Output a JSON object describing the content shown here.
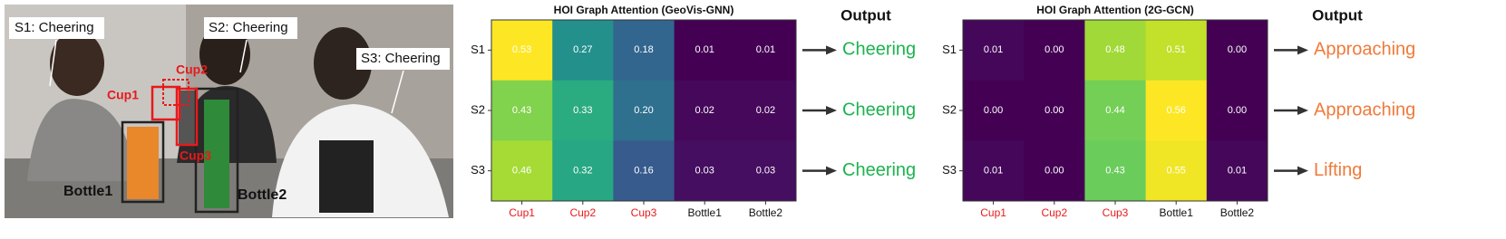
{
  "photo": {
    "subject_labels": [
      "S1: Cheering",
      "S2: Cheering",
      "S3: Cheering"
    ],
    "object_labels": [
      "Cup1",
      "Cup2",
      "Cup3",
      "Bottle1",
      "Bottle2"
    ]
  },
  "chart_data": [
    {
      "type": "heatmap",
      "title": "HOI Graph Attention (GeoVis-GNN)",
      "colormap": "viridis",
      "zlim": [
        0.01,
        0.53
      ],
      "x_categories": [
        "Cup1",
        "Cup2",
        "Cup3",
        "Bottle1",
        "Bottle2"
      ],
      "x_category_colors": [
        "#e8191b",
        "#e8191b",
        "#e8191b",
        "#111111",
        "#111111"
      ],
      "y_categories": [
        "S1",
        "S2",
        "S3"
      ],
      "values": [
        [
          0.53,
          0.27,
          0.18,
          0.01,
          0.01
        ],
        [
          0.43,
          0.33,
          0.2,
          0.02,
          0.02
        ],
        [
          0.46,
          0.32,
          0.16,
          0.03,
          0.03
        ]
      ],
      "value_labels": [
        [
          "0.53",
          "0.27",
          "0.18",
          "0.01",
          "0.01"
        ],
        [
          "0.43",
          "0.33",
          "0.20",
          "0.02",
          "0.02"
        ],
        [
          "0.46",
          "0.32",
          "0.16",
          "0.03",
          "0.03"
        ]
      ],
      "output_title": "Output",
      "outputs": [
        "Cheering",
        "Cheering",
        "Cheering"
      ],
      "output_color": "#1db34f"
    },
    {
      "type": "heatmap",
      "title": "HOI Graph Attention (2G-GCN)",
      "colormap": "viridis",
      "zlim": [
        0,
        0.56
      ],
      "x_categories": [
        "Cup1",
        "Cup2",
        "Cup3",
        "Bottle1",
        "Bottle2"
      ],
      "x_category_colors": [
        "#e8191b",
        "#e8191b",
        "#e8191b",
        "#111111",
        "#111111"
      ],
      "y_categories": [
        "S1",
        "S2",
        "S3"
      ],
      "values": [
        [
          0.01,
          0,
          0.48,
          0.51,
          0
        ],
        [
          0,
          0,
          0.44,
          0.56,
          0
        ],
        [
          0.01,
          0,
          0.43,
          0.55,
          0.01
        ]
      ],
      "value_labels": [
        [
          "0.01",
          "0.00",
          "0.48",
          "0.51",
          "0.00"
        ],
        [
          "0.00",
          "0.00",
          "0.44",
          "0.56",
          "0.00"
        ],
        [
          "0.01",
          "0.00",
          "0.43",
          "0.55",
          "0.01"
        ]
      ],
      "output_title": "Output",
      "outputs": [
        "Approaching",
        "Approaching",
        "Lifting"
      ],
      "output_color": "#f07a3a"
    }
  ]
}
